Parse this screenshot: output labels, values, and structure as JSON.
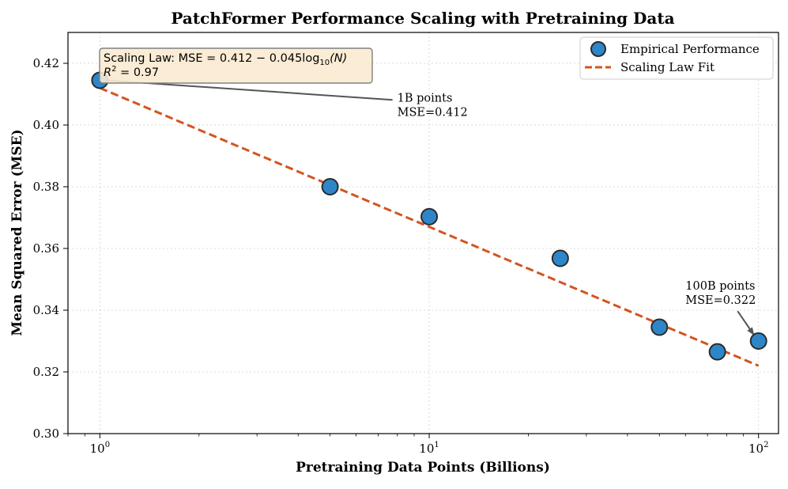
{
  "chart_data": {
    "type": "scatter",
    "title": "PatchFormer Performance Scaling with Pretraining Data",
    "xlabel": "Pretraining Data Points (Billions)",
    "ylabel": "Mean Squared Error (MSE)",
    "x_scale": "log",
    "xlim": [
      0.8,
      115
    ],
    "ylim": [
      0.3,
      0.43
    ],
    "grid": true,
    "x_ticks": [
      {
        "value": 1,
        "base": "10",
        "exp": "0"
      },
      {
        "value": 10,
        "base": "10",
        "exp": "1"
      },
      {
        "value": 100,
        "base": "10",
        "exp": "2"
      }
    ],
    "y_ticks": [
      {
        "value": 0.3,
        "label": "0.30"
      },
      {
        "value": 0.32,
        "label": "0.32"
      },
      {
        "value": 0.34,
        "label": "0.34"
      },
      {
        "value": 0.36,
        "label": "0.36"
      },
      {
        "value": 0.38,
        "label": "0.38"
      },
      {
        "value": 0.4,
        "label": "0.40"
      },
      {
        "value": 0.42,
        "label": "0.42"
      }
    ],
    "series": [
      {
        "name": "Empirical Performance",
        "kind": "scatter",
        "color": "#2e86c8",
        "edge_color": "#2b2b2b",
        "x": [
          1,
          5,
          10,
          25,
          50,
          75,
          100
        ],
        "y": [
          0.4145,
          0.38,
          0.3703,
          0.3568,
          0.3345,
          0.3265,
          0.33
        ]
      },
      {
        "name": "Scaling Law Fit",
        "kind": "line",
        "style": "dashed",
        "color": "#d35420",
        "intercept": 0.412,
        "slope": -0.045,
        "x_range": [
          1,
          100
        ]
      }
    ],
    "legend": {
      "position": "upper right",
      "entries": [
        "Empirical Performance",
        "Scaling Law Fit"
      ]
    },
    "annotations": [
      {
        "name": "annotation-1b",
        "lines": [
          "1B points",
          "MSE=0.412"
        ],
        "point": {
          "x": 1,
          "y": 0.4145
        },
        "text_at": {
          "x": 8,
          "y": 0.403
        }
      },
      {
        "name": "annotation-100b",
        "lines": [
          "100B points",
          "MSE=0.322"
        ],
        "point": {
          "x": 100,
          "y": 0.33
        },
        "text_at": {
          "x": 60,
          "y": 0.342
        }
      }
    ],
    "fit_box": {
      "line1_prefix": "Scaling Law: ",
      "line1_math": "MSE = 0.412 − 0.045log",
      "line1_sub": "10",
      "line1_tail": "(N)",
      "line2_var": "R",
      "line2_sup": "2",
      "line2_tail": " = 0.97",
      "face_color": "#fbead0",
      "edge_color": "#808080"
    }
  }
}
